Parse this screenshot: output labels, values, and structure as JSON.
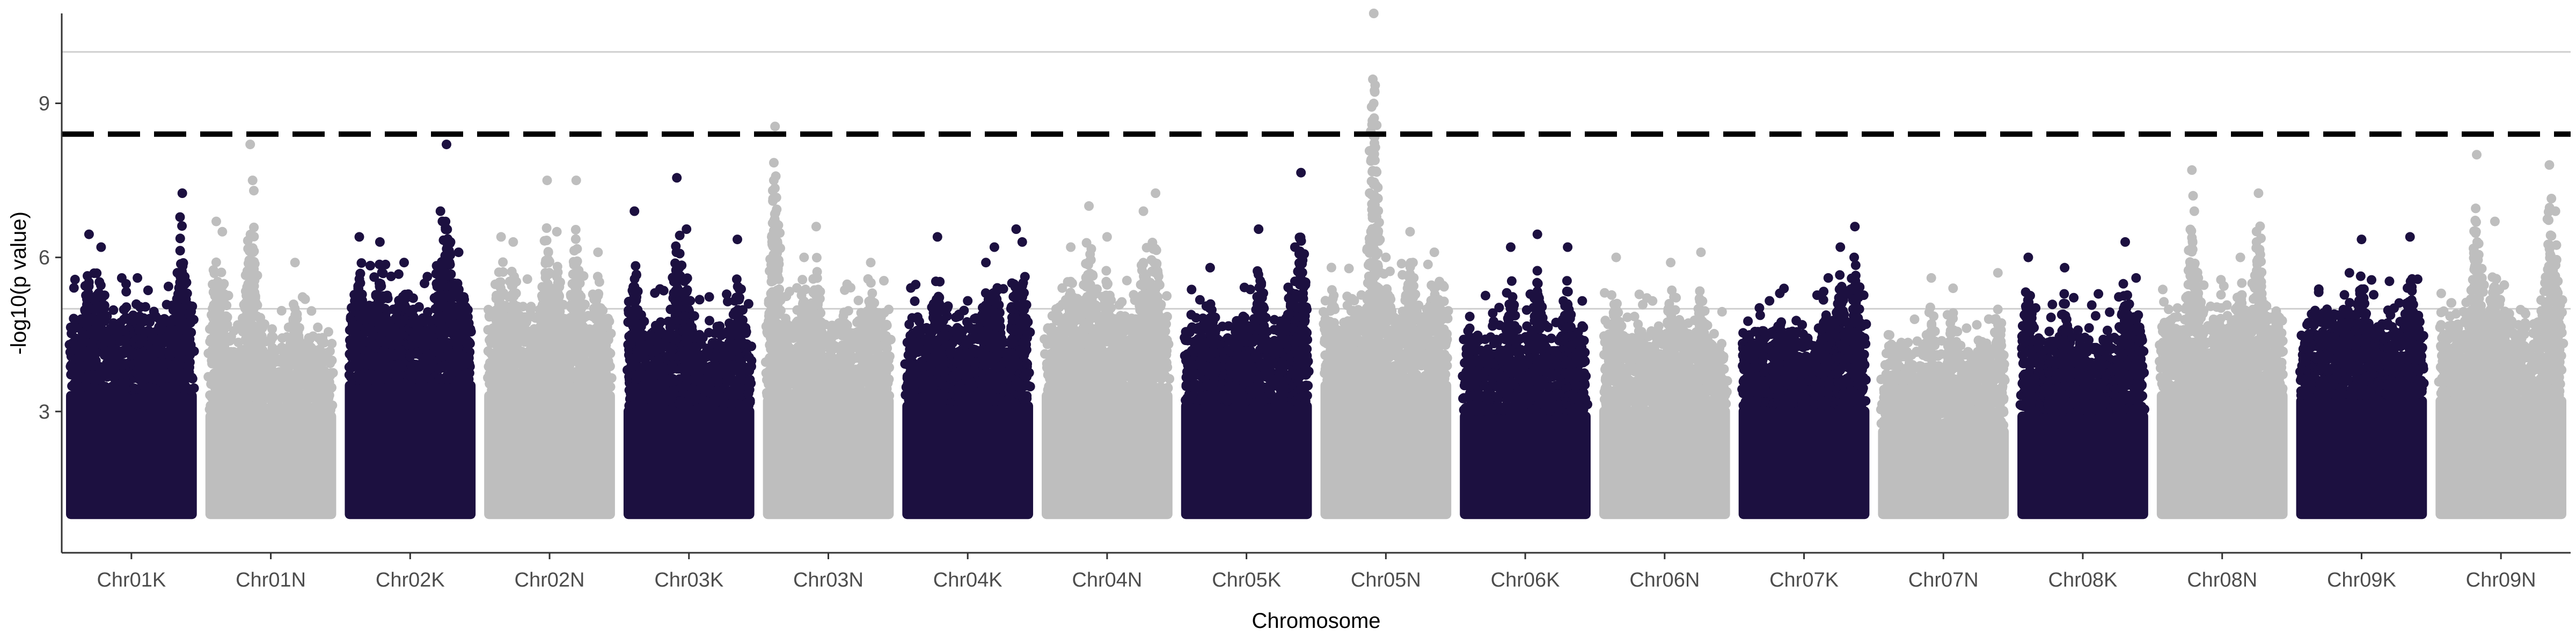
{
  "chart_data": {
    "type": "scatter",
    "title": "",
    "xlabel": "Chromosome",
    "ylabel": "-log10(p value)",
    "ylim": [
      0.25,
      10.75
    ],
    "yticks": [
      3,
      6,
      9
    ],
    "grid": "horizontal lines at 5 and 10",
    "legend": "none",
    "colors": {
      "dark": "#1c1040",
      "light": "#bebebe",
      "threshold": "#000000",
      "axis": "#333333",
      "grid": "#cfcfcf"
    },
    "reference_lines": {
      "significance_threshold": 8.4,
      "horizontal_gridlines": [
        5,
        10
      ]
    },
    "categories": [
      "Chr01K",
      "Chr01N",
      "Chr02K",
      "Chr02N",
      "Chr03K",
      "Chr03N",
      "Chr04K",
      "Chr04N",
      "Chr05K",
      "Chr05N",
      "Chr06K",
      "Chr06N",
      "Chr07K",
      "Chr07N",
      "Chr08K",
      "Chr08N",
      "Chr09K",
      "Chr09N"
    ],
    "chromosomes": [
      {
        "name": "Chr01K",
        "color": "dark",
        "max": 7.25,
        "base": 4.6,
        "peaks": [
          [
            0.15,
            6.45
          ],
          [
            0.25,
            6.2
          ],
          [
            0.55,
            5.6
          ],
          [
            0.92,
            7.25
          ]
        ]
      },
      {
        "name": "Chr01N",
        "color": "light",
        "max": 8.2,
        "base": 4.2,
        "peaks": [
          [
            0.05,
            6.7
          ],
          [
            0.1,
            6.5
          ],
          [
            0.33,
            8.2
          ],
          [
            0.35,
            7.5
          ],
          [
            0.36,
            7.3
          ],
          [
            0.7,
            5.9
          ]
        ]
      },
      {
        "name": "Chr02K",
        "color": "dark",
        "max": 8.2,
        "base": 4.8,
        "peaks": [
          [
            0.08,
            6.4
          ],
          [
            0.25,
            6.3
          ],
          [
            0.45,
            5.9
          ],
          [
            0.75,
            6.9
          ],
          [
            0.8,
            8.2
          ],
          [
            0.9,
            6.1
          ]
        ]
      },
      {
        "name": "Chr02N",
        "color": "light",
        "max": 7.5,
        "base": 4.6,
        "peaks": [
          [
            0.1,
            6.4
          ],
          [
            0.2,
            6.3
          ],
          [
            0.48,
            7.5
          ],
          [
            0.56,
            6.5
          ],
          [
            0.72,
            7.5
          ],
          [
            0.9,
            6.1
          ]
        ]
      },
      {
        "name": "Chr03K",
        "color": "dark",
        "max": 7.55,
        "base": 4.3,
        "peaks": [
          [
            0.05,
            6.9
          ],
          [
            0.4,
            7.55
          ],
          [
            0.48,
            6.55
          ],
          [
            0.9,
            6.35
          ]
        ]
      },
      {
        "name": "Chr03N",
        "color": "light",
        "max": 8.55,
        "base": 4.5,
        "peaks": [
          [
            0.05,
            7.5
          ],
          [
            0.06,
            8.55
          ],
          [
            0.3,
            6.0
          ],
          [
            0.4,
            6.6
          ],
          [
            0.85,
            5.9
          ]
        ]
      },
      {
        "name": "Chr04K",
        "color": "dark",
        "max": 6.55,
        "base": 4.4,
        "peaks": [
          [
            0.25,
            6.4
          ],
          [
            0.65,
            5.9
          ],
          [
            0.72,
            6.2
          ],
          [
            0.9,
            6.55
          ],
          [
            0.95,
            6.3
          ]
        ]
      },
      {
        "name": "Chr04N",
        "color": "light",
        "max": 7.25,
        "base": 4.6,
        "peaks": [
          [
            0.2,
            6.2
          ],
          [
            0.35,
            7.0
          ],
          [
            0.5,
            6.4
          ],
          [
            0.8,
            6.9
          ],
          [
            0.9,
            7.25
          ]
        ]
      },
      {
        "name": "Chr05K",
        "color": "dark",
        "max": 7.65,
        "base": 4.4,
        "peaks": [
          [
            0.2,
            5.8
          ],
          [
            0.6,
            6.55
          ],
          [
            0.9,
            6.2
          ],
          [
            0.95,
            7.65
          ]
        ]
      },
      {
        "name": "Chr05N",
        "color": "light",
        "max": 10.75,
        "base": 4.8,
        "peaks": [
          [
            0.4,
            10.75
          ],
          [
            0.5,
            6.0
          ],
          [
            0.7,
            6.5
          ],
          [
            0.9,
            6.1
          ]
        ]
      },
      {
        "name": "Chr06K",
        "color": "dark",
        "max": 6.45,
        "base": 4.2,
        "peaks": [
          [
            0.38,
            6.2
          ],
          [
            0.6,
            6.45
          ],
          [
            0.85,
            6.2
          ]
        ]
      },
      {
        "name": "Chr06N",
        "color": "light",
        "max": 6.1,
        "base": 4.3,
        "peaks": [
          [
            0.1,
            6.0
          ],
          [
            0.55,
            5.9
          ],
          [
            0.8,
            6.1
          ]
        ]
      },
      {
        "name": "Chr07K",
        "color": "dark",
        "max": 6.6,
        "base": 4.3,
        "peaks": [
          [
            0.3,
            5.3
          ],
          [
            0.7,
            5.6
          ],
          [
            0.8,
            6.2
          ],
          [
            0.92,
            6.6
          ]
        ]
      },
      {
        "name": "Chr07N",
        "color": "light",
        "max": 5.7,
        "base": 3.9,
        "peaks": [
          [
            0.4,
            5.6
          ],
          [
            0.58,
            5.4
          ],
          [
            0.95,
            5.7
          ]
        ]
      },
      {
        "name": "Chr08K",
        "color": "dark",
        "max": 6.3,
        "base": 4.2,
        "peaks": [
          [
            0.05,
            6.0
          ],
          [
            0.35,
            5.8
          ],
          [
            0.85,
            6.3
          ],
          [
            0.94,
            5.6
          ]
        ]
      },
      {
        "name": "Chr08N",
        "color": "light",
        "max": 7.7,
        "base": 4.6,
        "peaks": [
          [
            0.25,
            7.7
          ],
          [
            0.26,
            7.2
          ],
          [
            0.27,
            6.9
          ],
          [
            0.65,
            6.0
          ],
          [
            0.8,
            7.25
          ]
        ]
      },
      {
        "name": "Chr09K",
        "color": "dark",
        "max": 6.4,
        "base": 4.5,
        "peaks": [
          [
            0.4,
            5.7
          ],
          [
            0.5,
            6.35
          ],
          [
            0.9,
            6.4
          ]
        ]
      },
      {
        "name": "Chr09N",
        "color": "light",
        "max": 8.0,
        "base": 4.5,
        "peaks": [
          [
            0.3,
            8.0
          ],
          [
            0.45,
            6.7
          ],
          [
            0.9,
            7.8
          ],
          [
            0.95,
            6.9
          ]
        ]
      }
    ]
  }
}
